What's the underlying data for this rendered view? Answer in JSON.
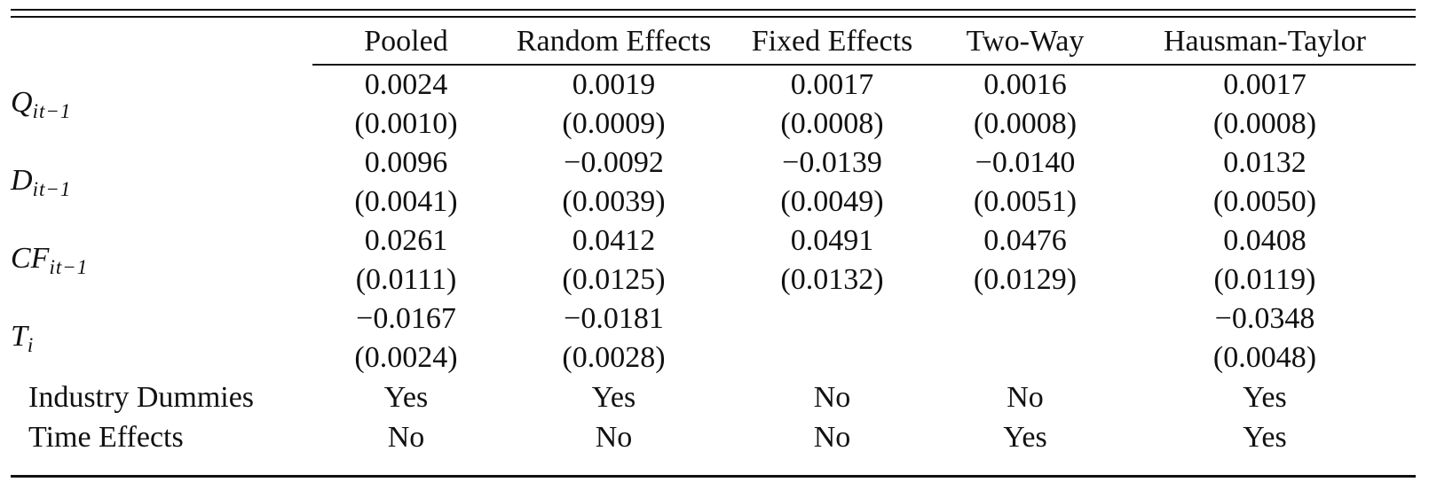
{
  "colors": {
    "text": "#111111",
    "rule": "#111111",
    "background": "#ffffff"
  },
  "table": {
    "columns": [
      "Pooled",
      "Random Effects",
      "Fixed Effects",
      "Two-Way",
      "Hausman-Taylor"
    ],
    "rows": [
      {
        "var": "Q",
        "sub": "it−1",
        "coefs": [
          "0.0024",
          "0.0019",
          "0.0017",
          "0.0016",
          "0.0017"
        ],
        "ses": [
          "(0.0010)",
          "(0.0009)",
          "(0.0008)",
          "(0.0008)",
          "(0.0008)"
        ]
      },
      {
        "var": "D",
        "sub": "it−1",
        "coefs": [
          "0.0096",
          "−0.0092",
          "−0.0139",
          "−0.0140",
          "0.0132"
        ],
        "ses": [
          "(0.0041)",
          "(0.0039)",
          "(0.0049)",
          "(0.0051)",
          "(0.0050)"
        ]
      },
      {
        "var": "CF",
        "sub": "it−1",
        "coefs": [
          "0.0261",
          "0.0412",
          "0.0491",
          "0.0476",
          "0.0408"
        ],
        "ses": [
          "(0.0111)",
          "(0.0125)",
          "(0.0132)",
          "(0.0129)",
          "(0.0119)"
        ]
      },
      {
        "var": "T",
        "sub": "i",
        "coefs": [
          "−0.0167",
          "−0.0181",
          "",
          "",
          "−0.0348"
        ],
        "ses": [
          "(0.0024)",
          "(0.0028)",
          "",
          "",
          "(0.0048)"
        ]
      }
    ],
    "meta_rows": [
      {
        "label": "Industry Dummies",
        "values": [
          "Yes",
          "Yes",
          "No",
          "No",
          "Yes"
        ]
      },
      {
        "label": "Time Effects",
        "values": [
          "No",
          "No",
          "No",
          "Yes",
          "Yes"
        ]
      }
    ]
  }
}
